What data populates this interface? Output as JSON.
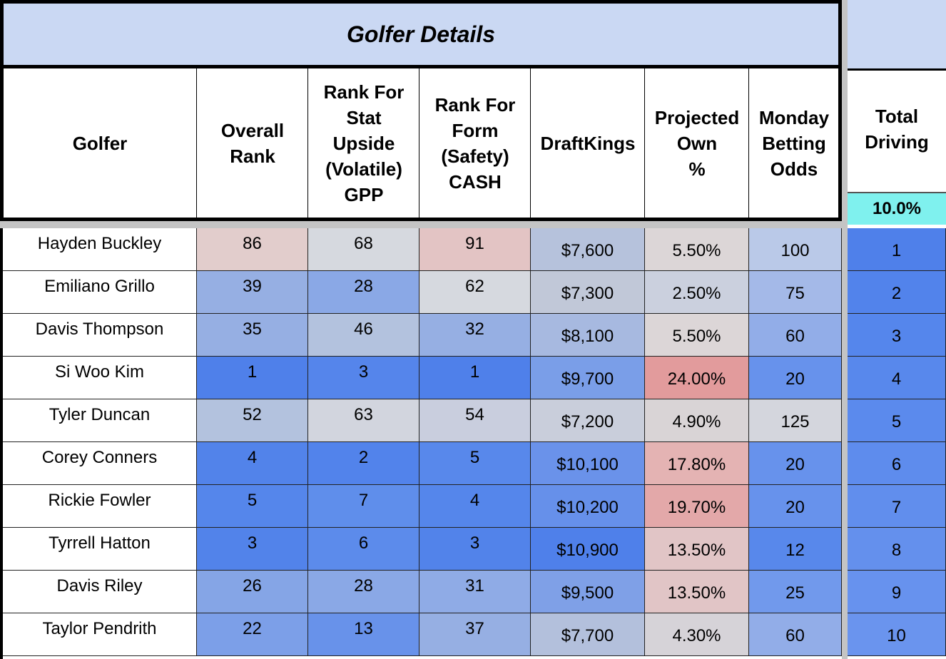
{
  "title": "Golfer Details",
  "headers": {
    "golfer": "Golfer",
    "overall_rank": "Overall\nRank",
    "stat_upside": "Rank For\nStat\nUpside\n(Volatile)\nGPP",
    "form_safety": "Rank For\nForm\n(Safety)\nCASH",
    "draftkings": "DraftKings",
    "projected_own": "Projected\nOwn\n%",
    "betting_odds": "Monday\nBetting\nOdds",
    "total_driving": "Total\nDriving",
    "total_driving_weight": "10.0%"
  },
  "colors": {
    "title_bg": "#cad8f3",
    "weight_bg": "#7ff1ee",
    "best_blue": "#4f80ea",
    "neutral_gray": "#d4d6dd",
    "worst_red": "#e29b9c"
  },
  "rows": [
    {
      "golfer": "Hayden Buckley",
      "overall": "86",
      "upside": "68",
      "form": "91",
      "dk": "$7,600",
      "own": "5.50%",
      "odds": "100",
      "driving": "1",
      "c_overall": "#e2cdcc",
      "c_upside": "#d6d9df",
      "c_form": "#e3c4c4",
      "c_dk": "#b6c2dc",
      "c_own": "#dcd6d7",
      "c_odds": "#bac9e8",
      "c_drv": "#4f80ea"
    },
    {
      "golfer": "Emiliano Grillo",
      "overall": "39",
      "upside": "28",
      "form": "62",
      "dk": "$7,300",
      "own": "2.50%",
      "odds": "75",
      "driving": "2",
      "c_overall": "#96afe3",
      "c_upside": "#8aa8e6",
      "c_form": "#d6d9df",
      "c_dk": "#c1c8d8",
      "c_own": "#cbd0de",
      "c_odds": "#a4b9e8",
      "c_drv": "#5283eb"
    },
    {
      "golfer": "Davis Thompson",
      "overall": "35",
      "upside": "46",
      "form": "32",
      "dk": "$8,100",
      "own": "5.50%",
      "odds": "60",
      "driving": "3",
      "c_overall": "#96afe3",
      "c_upside": "#b3c2de",
      "c_form": "#96afe3",
      "c_dk": "#a7b9e0",
      "c_own": "#dcd6d7",
      "c_odds": "#92ade8",
      "c_drv": "#5586ec"
    },
    {
      "golfer": "Si Woo Kim",
      "overall": "1",
      "upside": "3",
      "form": "1",
      "dk": "$9,700",
      "own": "24.00%",
      "odds": "20",
      "driving": "4",
      "c_overall": "#4f80ea",
      "c_upside": "#5585eb",
      "c_form": "#4f80ea",
      "c_dk": "#7a9ee8",
      "c_own": "#e29b9c",
      "c_odds": "#6792ec",
      "c_drv": "#5888ec"
    },
    {
      "golfer": "Tyler Duncan",
      "overall": "52",
      "upside": "63",
      "form": "54",
      "dk": "$7,200",
      "own": "4.90%",
      "odds": "125",
      "driving": "5",
      "c_overall": "#b3c2de",
      "c_upside": "#d2d5de",
      "c_form": "#c9cede",
      "c_dk": "#c9cedb",
      "c_own": "#d9d4d6",
      "c_odds": "#d4d6dd",
      "c_drv": "#5b8aed"
    },
    {
      "golfer": "Corey Conners",
      "overall": "4",
      "upside": "2",
      "form": "5",
      "dk": "$10,100",
      "own": "17.80%",
      "odds": "20",
      "driving": "6",
      "c_overall": "#5283ea",
      "c_upside": "#5283eb",
      "c_form": "#5888eb",
      "c_dk": "#6a92ea",
      "c_own": "#e4b3b3",
      "c_odds": "#6792ec",
      "c_drv": "#5e8ced"
    },
    {
      "golfer": "Rickie Fowler",
      "overall": "5",
      "upside": "7",
      "form": "4",
      "dk": "$10,200",
      "own": "19.70%",
      "odds": "20",
      "driving": "7",
      "c_overall": "#5586eb",
      "c_upside": "#5f8eeb",
      "c_form": "#5586eb",
      "c_dk": "#6690ea",
      "c_own": "#e3a8a9",
      "c_odds": "#6792ec",
      "c_drv": "#618eed"
    },
    {
      "golfer": "Tyrrell Hatton",
      "overall": "3",
      "upside": "6",
      "form": "3",
      "dk": "$10,900",
      "own": "13.50%",
      "odds": "12",
      "driving": "8",
      "c_overall": "#5283ea",
      "c_upside": "#5c8beb",
      "c_form": "#5283ea",
      "c_dk": "#4f80ea",
      "c_own": "#e1c5c6",
      "c_odds": "#5888eb",
      "c_drv": "#6490ed"
    },
    {
      "golfer": "Davis Riley",
      "overall": "26",
      "upside": "28",
      "form": "31",
      "dk": "$9,500",
      "own": "13.50%",
      "odds": "25",
      "driving": "9",
      "c_overall": "#85a5e6",
      "c_upside": "#8aa8e6",
      "c_form": "#8fabe6",
      "c_dk": "#7fa0e7",
      "c_own": "#e1c5c6",
      "c_odds": "#7199ec",
      "c_drv": "#6792ee"
    },
    {
      "golfer": "Taylor Pendrith",
      "overall": "22",
      "upside": "13",
      "form": "37",
      "dk": "$7,700",
      "own": "4.30%",
      "odds": "60",
      "driving": "10",
      "c_overall": "#7c9fe8",
      "c_upside": "#6892ea",
      "c_form": "#96afe3",
      "c_dk": "#b3c0dc",
      "c_own": "#d6d3d8",
      "c_odds": "#92ade8",
      "c_drv": "#6a94ee"
    }
  ]
}
